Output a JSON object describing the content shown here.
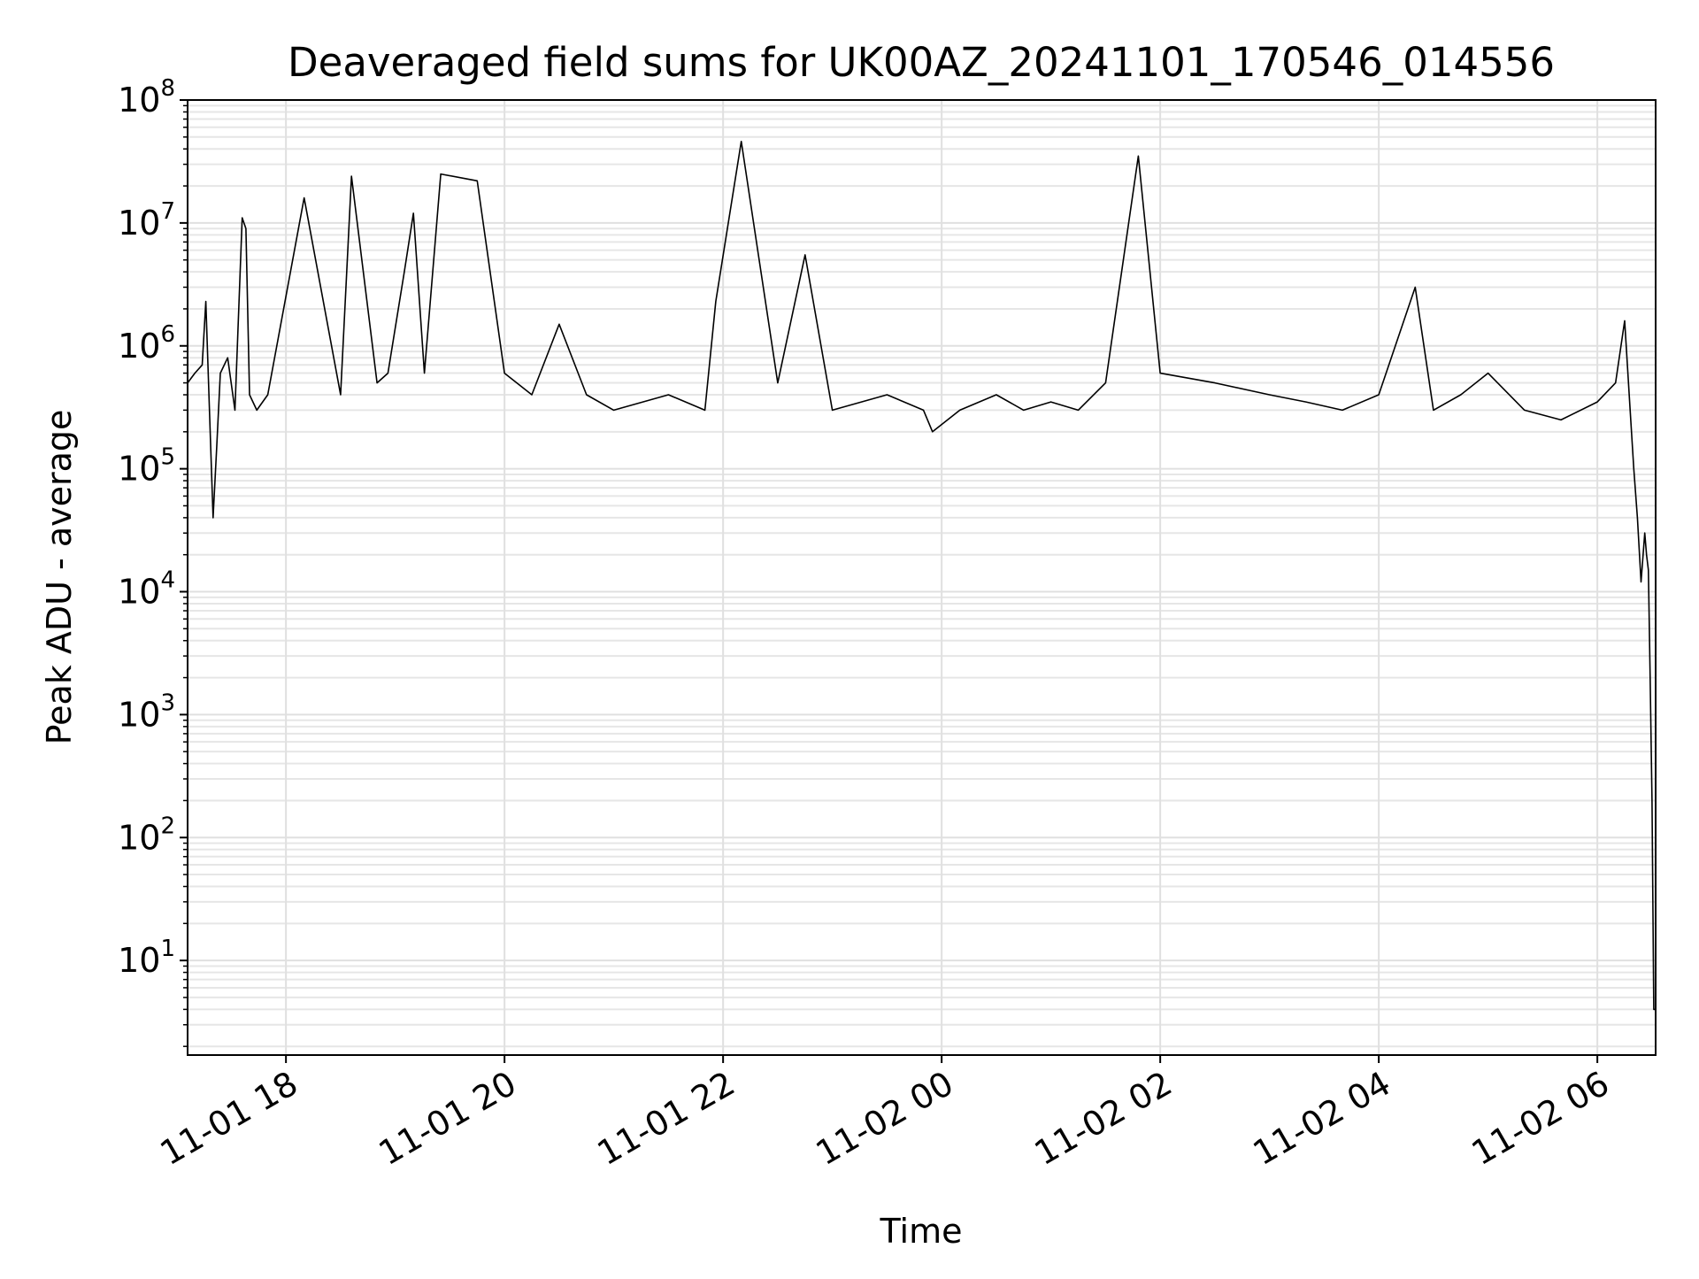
{
  "chart_data": {
    "type": "line",
    "title": "Deaveraged field sums for UK00AZ_20241101_170546_014556",
    "xlabel": "Time",
    "ylabel": "Peak ADU - average",
    "yscale": "log",
    "ylim": [
      1.7,
      100000000
    ],
    "xlim": [
      "2024-11-01 17:06",
      "2024-11-02 06:32"
    ],
    "grid": true,
    "line_color": "#000000",
    "x_ticks": [
      {
        "time": "2024-11-01 18:00",
        "label": "11-01 18"
      },
      {
        "time": "2024-11-01 20:00",
        "label": "11-01 20"
      },
      {
        "time": "2024-11-01 22:00",
        "label": "11-01 22"
      },
      {
        "time": "2024-11-02 00:00",
        "label": "11-02 00"
      },
      {
        "time": "2024-11-02 02:00",
        "label": "11-02 02"
      },
      {
        "time": "2024-11-02 04:00",
        "label": "11-02 04"
      },
      {
        "time": "2024-11-02 06:00",
        "label": "11-02 06"
      }
    ],
    "y_ticks": [
      {
        "value": 10,
        "base": "10",
        "exp": "1"
      },
      {
        "value": 100,
        "base": "10",
        "exp": "2"
      },
      {
        "value": 1000,
        "base": "10",
        "exp": "3"
      },
      {
        "value": 10000,
        "base": "10",
        "exp": "4"
      },
      {
        "value": 100000,
        "base": "10",
        "exp": "5"
      },
      {
        "value": 1000000,
        "base": "10",
        "exp": "6"
      },
      {
        "value": 10000000,
        "base": "10",
        "exp": "7"
      },
      {
        "value": 100000000,
        "base": "10",
        "exp": "8"
      }
    ],
    "series": [
      {
        "x": [
          "2024-11-01 17:06",
          "2024-11-01 17:10",
          "2024-11-01 17:14",
          "2024-11-01 17:16",
          "2024-11-01 17:18",
          "2024-11-01 17:20",
          "2024-11-01 17:22",
          "2024-11-01 17:24",
          "2024-11-01 17:28",
          "2024-11-01 17:32",
          "2024-11-01 17:36",
          "2024-11-01 17:38",
          "2024-11-01 17:40",
          "2024-11-01 17:44",
          "2024-11-01 17:50",
          "2024-11-01 18:10",
          "2024-11-01 18:30",
          "2024-11-01 18:36",
          "2024-11-01 18:50",
          "2024-11-01 18:56",
          "2024-11-01 19:05",
          "2024-11-01 19:10",
          "2024-11-01 19:16",
          "2024-11-01 19:25",
          "2024-11-01 19:45",
          "2024-11-01 20:00",
          "2024-11-01 20:15",
          "2024-11-01 20:30",
          "2024-11-01 20:45",
          "2024-11-01 21:00",
          "2024-11-01 21:30",
          "2024-11-01 21:50",
          "2024-11-01 21:56",
          "2024-11-01 22:10",
          "2024-11-01 22:30",
          "2024-11-01 22:45",
          "2024-11-01 23:00",
          "2024-11-01 23:30",
          "2024-11-01 23:50",
          "2024-11-01 23:55",
          "2024-11-02 00:10",
          "2024-11-02 00:30",
          "2024-11-02 00:45",
          "2024-11-02 01:00",
          "2024-11-02 01:15",
          "2024-11-02 01:30",
          "2024-11-02 01:48",
          "2024-11-02 02:00",
          "2024-11-02 02:30",
          "2024-11-02 03:00",
          "2024-11-02 03:20",
          "2024-11-02 03:40",
          "2024-11-02 04:00",
          "2024-11-02 04:20",
          "2024-11-02 04:30",
          "2024-11-02 04:45",
          "2024-11-02 05:00",
          "2024-11-02 05:20",
          "2024-11-02 05:40",
          "2024-11-02 06:00",
          "2024-11-02 06:10",
          "2024-11-02 06:15",
          "2024-11-02 06:18",
          "2024-11-02 06:20",
          "2024-11-02 06:22",
          "2024-11-02 06:24",
          "2024-11-02 06:26",
          "2024-11-02 06:27",
          "2024-11-02 06:28",
          "2024-11-02 06:29",
          "2024-11-02 06:30",
          "2024-11-02 06:31",
          "2024-11-02 06:32"
        ],
        "y": [
          500000,
          600000,
          700000,
          2300000,
          300000,
          40000,
          150000,
          600000,
          800000,
          300000,
          11000000,
          9000000,
          400000,
          300000,
          400000,
          16000000,
          400000,
          24000000,
          500000,
          600000,
          4000000,
          12000000,
          600000,
          25000000,
          22000000,
          600000,
          400000,
          1500000,
          400000,
          300000,
          400000,
          300000,
          2300000,
          46000000,
          500000,
          5500000,
          300000,
          400000,
          300000,
          200000,
          300000,
          400000,
          300000,
          350000,
          300000,
          500000,
          35000000,
          600000,
          500000,
          400000,
          350000,
          300000,
          400000,
          3000000,
          300000,
          400000,
          600000,
          300000,
          250000,
          350000,
          500000,
          1600000,
          300000,
          100000,
          40000,
          12000,
          30000,
          20000,
          15000,
          2000,
          200,
          4,
          4
        ]
      }
    ]
  }
}
